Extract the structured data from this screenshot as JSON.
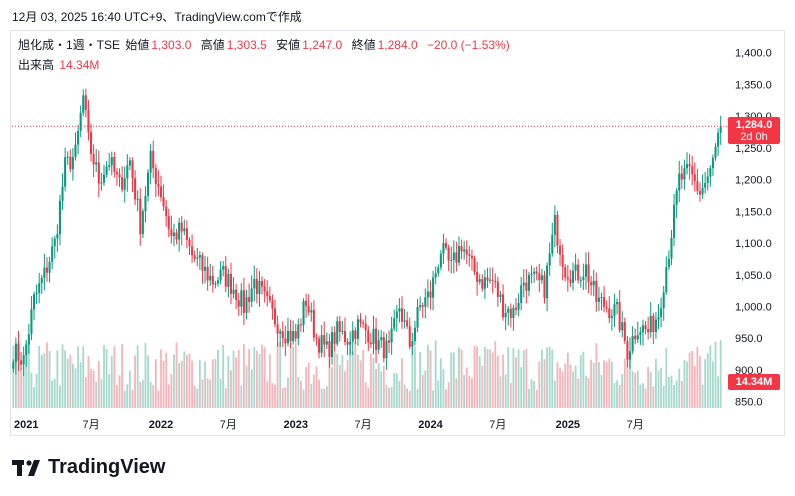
{
  "timestamp": "12月 03, 2025 16:40 UTC+9、TradingView.comで作成",
  "legend": {
    "symbol": "旭化成・1週・TSE",
    "open_label": "始値",
    "open": "1,303.0",
    "high_label": "高値",
    "high": "1,303.5",
    "low_label": "安値",
    "low": "1,247.0",
    "close_label": "終値",
    "close": "1,284.0",
    "change": "−20.0 (−1.53%)",
    "volume_label": "出来高",
    "volume": "14.34M"
  },
  "price_tag": {
    "price": "1,284.0",
    "countdown": "2d 0h"
  },
  "volume_tag": "14.34M",
  "brand": "TradingView",
  "colors": {
    "up": "#089981",
    "down": "#f23645",
    "up_vol": "#a6d9ce",
    "down_vol": "#f9b3b8"
  },
  "chart_data": {
    "type": "candlestick",
    "interval": "weekly",
    "ylim": [
      840,
      1420
    ],
    "y_ticks": [
      "1,400.0",
      "1,350.0",
      "1,300.0",
      "1,250.0",
      "1,200.0",
      "1,150.0",
      "1,100.0",
      "1,050.0",
      "1,000.0",
      "950.0",
      "900.0",
      "850.0"
    ],
    "y_tick_values": [
      1400,
      1350,
      1300,
      1250,
      1200,
      1150,
      1100,
      1050,
      1000,
      950,
      900,
      850
    ],
    "x_ticks": [
      "2021",
      "7月",
      "2022",
      "7月",
      "2023",
      "7月",
      "2024",
      "7月",
      "2025",
      "7月"
    ],
    "x_tick_bar_index": [
      5,
      30,
      57,
      83,
      109,
      135,
      161,
      187,
      214,
      240
    ],
    "last_close": 1284.0,
    "close_path_anchors": [
      [
        0,
        930
      ],
      [
        4,
        915
      ],
      [
        8,
        1010
      ],
      [
        12,
        1050
      ],
      [
        16,
        1100
      ],
      [
        20,
        1220
      ],
      [
        24,
        1240
      ],
      [
        27,
        1330
      ],
      [
        29,
        1260
      ],
      [
        33,
        1200
      ],
      [
        37,
        1230
      ],
      [
        41,
        1190
      ],
      [
        45,
        1230
      ],
      [
        49,
        1130
      ],
      [
        53,
        1230
      ],
      [
        57,
        1180
      ],
      [
        61,
        1110
      ],
      [
        65,
        1120
      ],
      [
        69,
        1080
      ],
      [
        73,
        1060
      ],
      [
        77,
        1040
      ],
      [
        81,
        1050
      ],
      [
        85,
        1030
      ],
      [
        89,
        1000
      ],
      [
        93,
        1040
      ],
      [
        97,
        1010
      ],
      [
        101,
        980
      ],
      [
        105,
        960
      ],
      [
        109,
        950
      ],
      [
        113,
        1010
      ],
      [
        117,
        950
      ],
      [
        121,
        930
      ],
      [
        125,
        960
      ],
      [
        129,
        950
      ],
      [
        133,
        970
      ],
      [
        137,
        960
      ],
      [
        141,
        940
      ],
      [
        145,
        930
      ],
      [
        149,
        1000
      ],
      [
        153,
        940
      ],
      [
        157,
        1000
      ],
      [
        161,
        1020
      ],
      [
        165,
        1090
      ],
      [
        169,
        1060
      ],
      [
        173,
        1100
      ],
      [
        177,
        1060
      ],
      [
        181,
        1040
      ],
      [
        185,
        1040
      ],
      [
        189,
        1000
      ],
      [
        193,
        990
      ],
      [
        197,
        1040
      ],
      [
        201,
        1040
      ],
      [
        205,
        1030
      ],
      [
        209,
        1130
      ],
      [
        213,
        1060
      ],
      [
        217,
        1050
      ],
      [
        221,
        1060
      ],
      [
        225,
        1010
      ],
      [
        229,
        1000
      ],
      [
        233,
        990
      ],
      [
        237,
        930
      ],
      [
        241,
        970
      ],
      [
        245,
        960
      ],
      [
        249,
        990
      ],
      [
        253,
        1090
      ],
      [
        257,
        1200
      ],
      [
        261,
        1210
      ],
      [
        265,
        1180
      ],
      [
        269,
        1210
      ],
      [
        273,
        1284
      ]
    ]
  }
}
